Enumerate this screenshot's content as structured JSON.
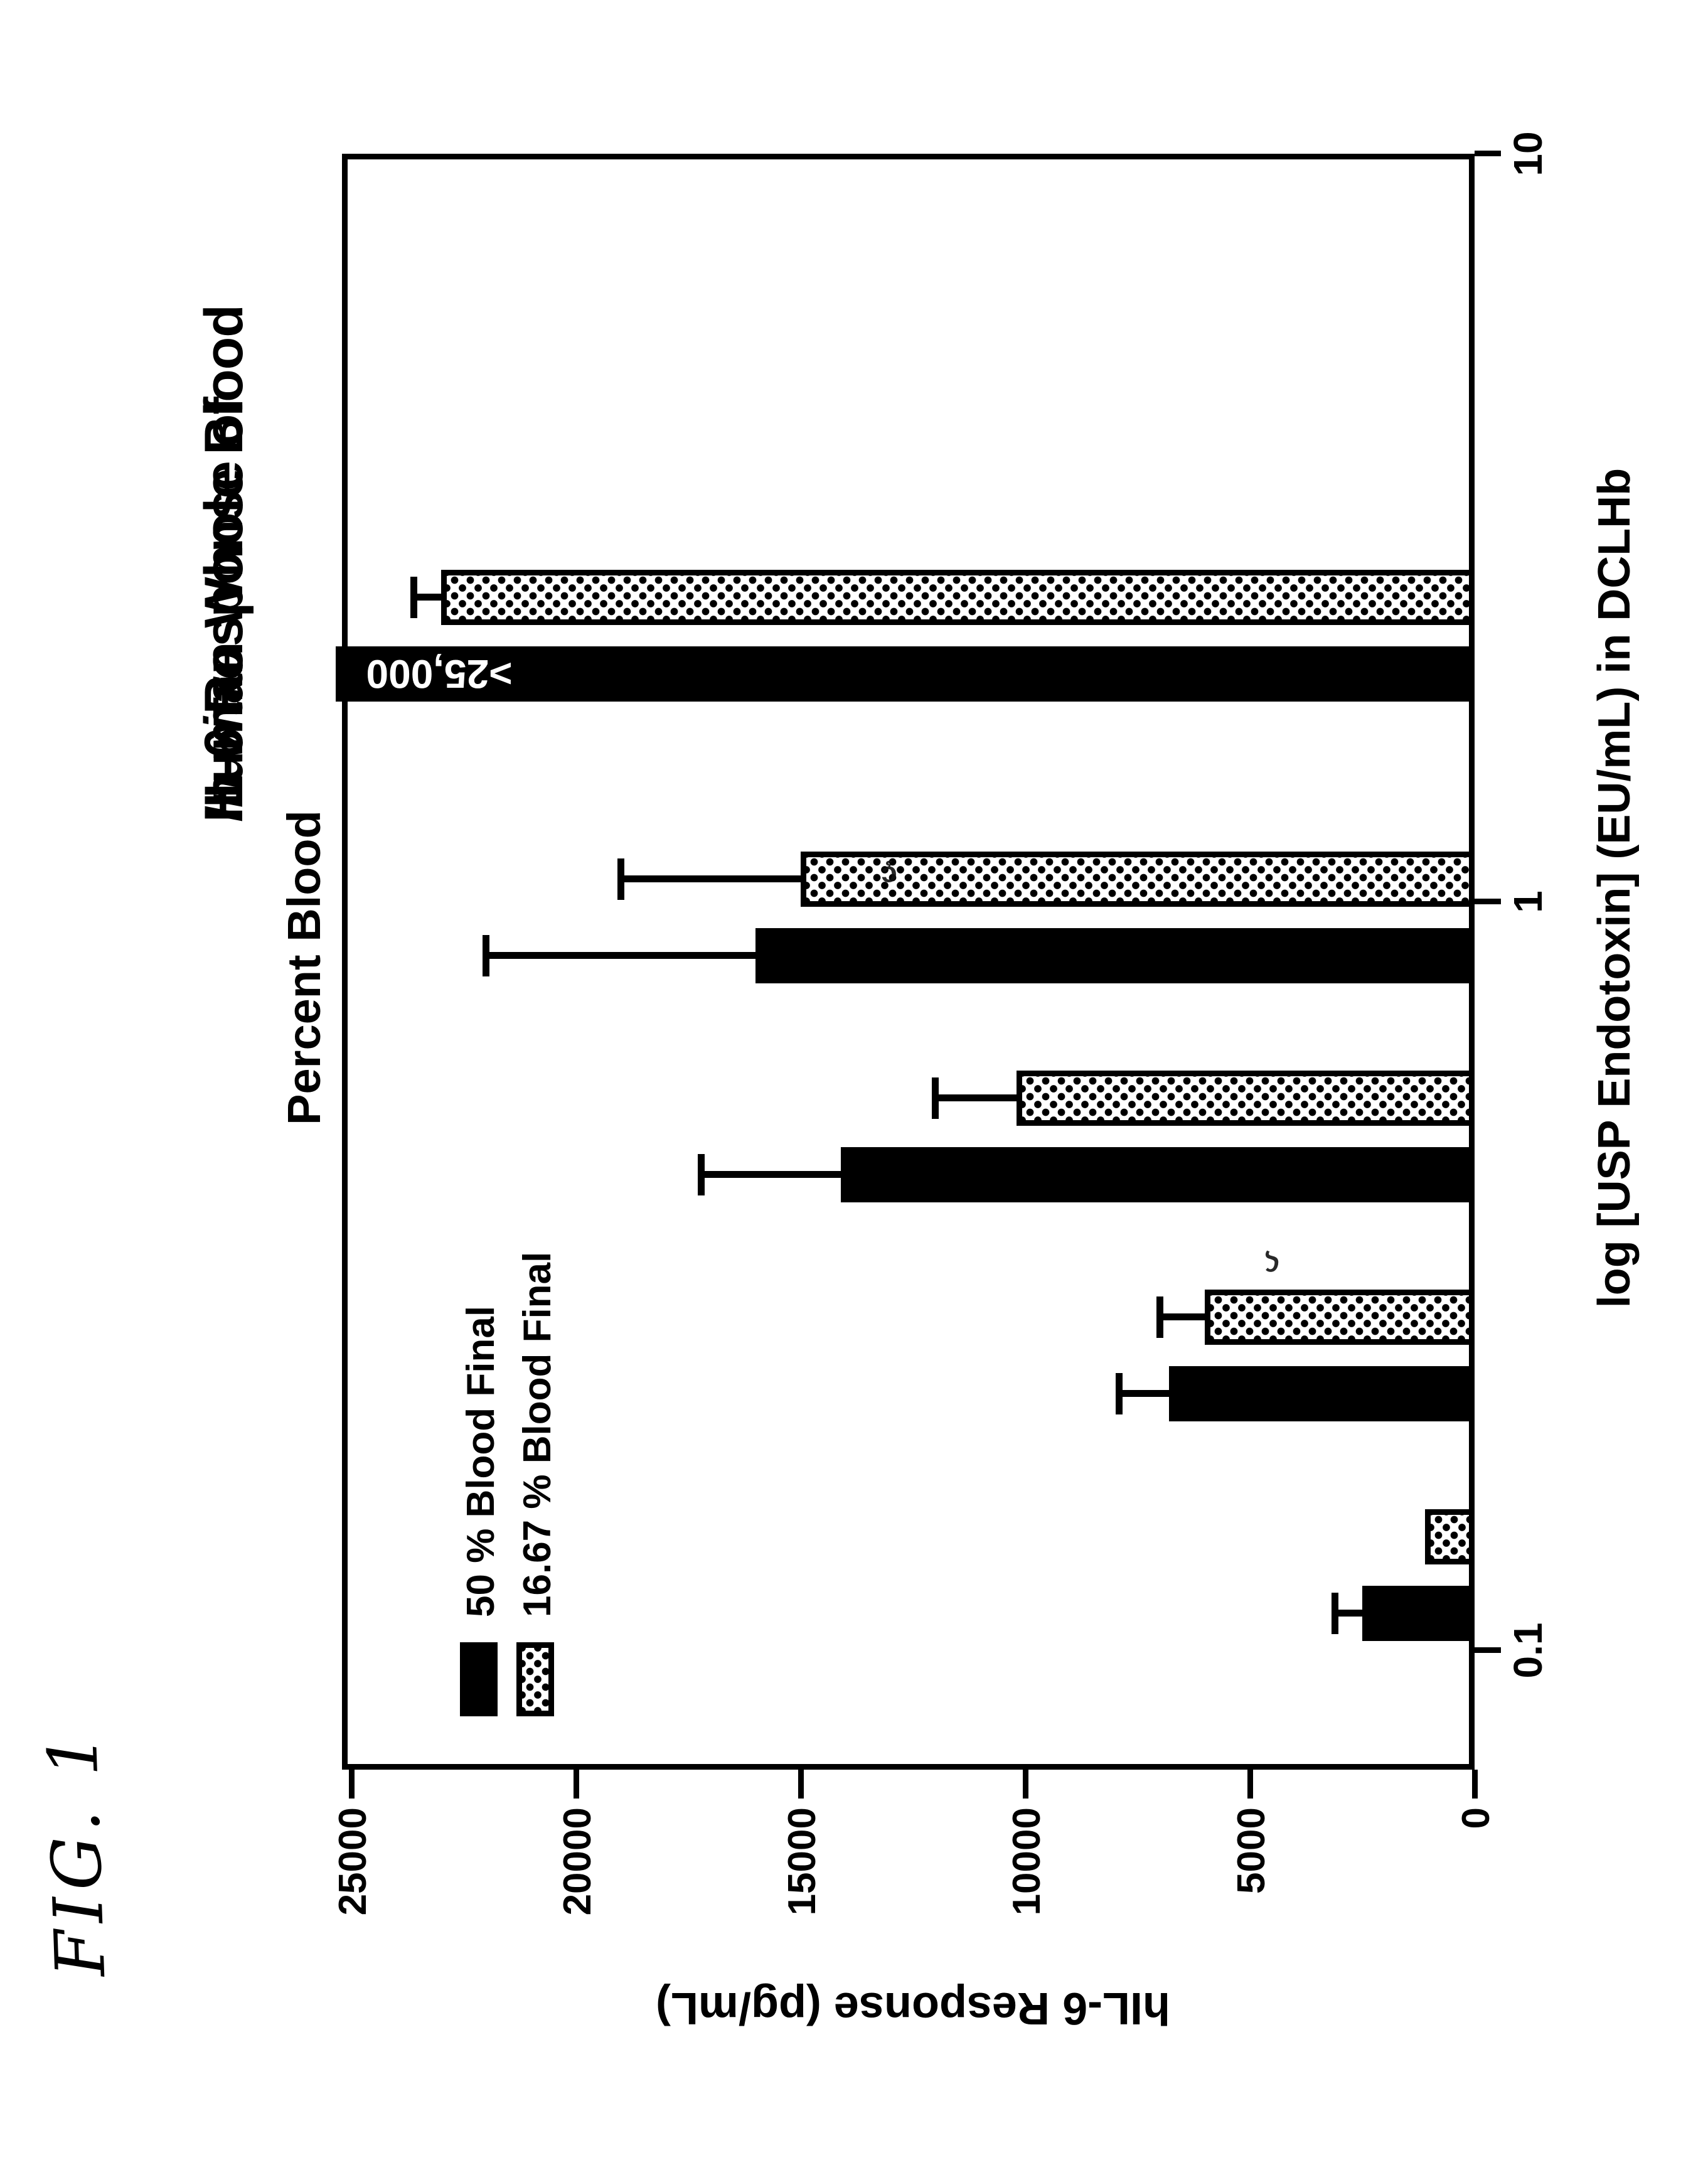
{
  "figure_label": "FIG. 1",
  "title": {
    "pre": "IL-6 Response of ",
    "italic": "In vitro",
    "post": " Human Whole Blood"
  },
  "subtitle": "Percent Blood",
  "legend": [
    {
      "label": "50 % Blood Final",
      "swatch": "solid-black"
    },
    {
      "label": "16.67 % Blood Final",
      "swatch": "stippled"
    }
  ],
  "colors": {
    "bar_black": "#000000",
    "background": "#ffffff",
    "stipple_dot": "#000000"
  },
  "chart_data": {
    "type": "bar",
    "title": "IL-6 Response of In vitro Human Whole Blood",
    "subtitle": "Percent Blood",
    "orientation_note": "entire figure printed rotated 90 degrees counterclockwise on the page",
    "x_axis": {
      "label": "log [USP Endotoxin] (EU/mL) in DCLHb",
      "scale": "log",
      "tick_labels": [
        "0.1",
        "1",
        "10"
      ],
      "tick_values": [
        0.1,
        1,
        10
      ]
    },
    "y_axis": {
      "label": "hIL-6 Response (pg/mL)",
      "ticks": [
        0,
        5000,
        10000,
        15000,
        20000,
        25000
      ],
      "tick_labels": [
        "0",
        "5000",
        "10000",
        "15000",
        "20000",
        "25000"
      ],
      "range": [
        0,
        25000
      ]
    },
    "categories": [
      0.1,
      0.25,
      0.5,
      1,
      2.5
    ],
    "series": [
      {
        "name": "50 % Blood Final",
        "style": "solid-black",
        "values": [
          2500,
          6800,
          14100,
          16000,
          25000
        ],
        "error_top": [
          3100,
          7900,
          17200,
          22000,
          null
        ],
        "overflow": {
          "index": 4,
          "label": ">25,000"
        }
      },
      {
        "name": "16.67 % Blood Final",
        "style": "stippled",
        "values": [
          1100,
          6000,
          10200,
          15000,
          23000
        ],
        "error_top": [
          null,
          7000,
          12000,
          19000,
          23600
        ]
      }
    ],
    "legend_position": "upper-left-inside",
    "grid": false,
    "annotations": {
      "stray_marks": [
        "ç",
        "ς"
      ]
    }
  }
}
